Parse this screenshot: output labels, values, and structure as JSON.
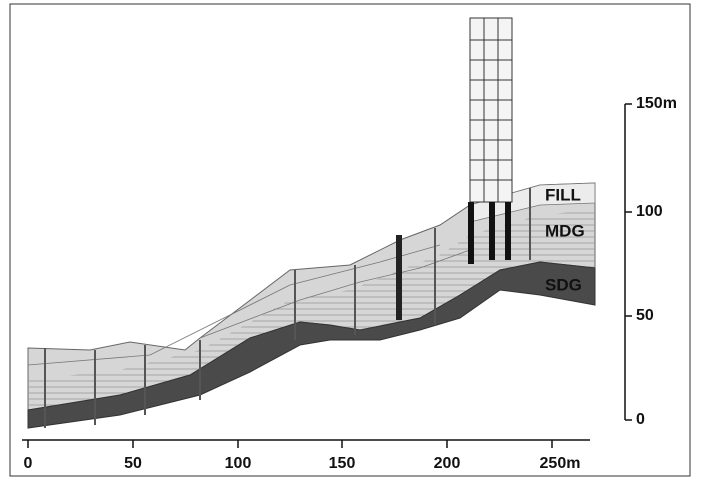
{
  "x_axis": {
    "labels": [
      "0",
      "50",
      "100",
      "150",
      "200",
      "250m"
    ]
  },
  "y_axis": {
    "labels": [
      "0",
      "50",
      "100",
      "150m"
    ]
  },
  "layers": [
    "FILL",
    "MDG",
    "SDG"
  ]
}
